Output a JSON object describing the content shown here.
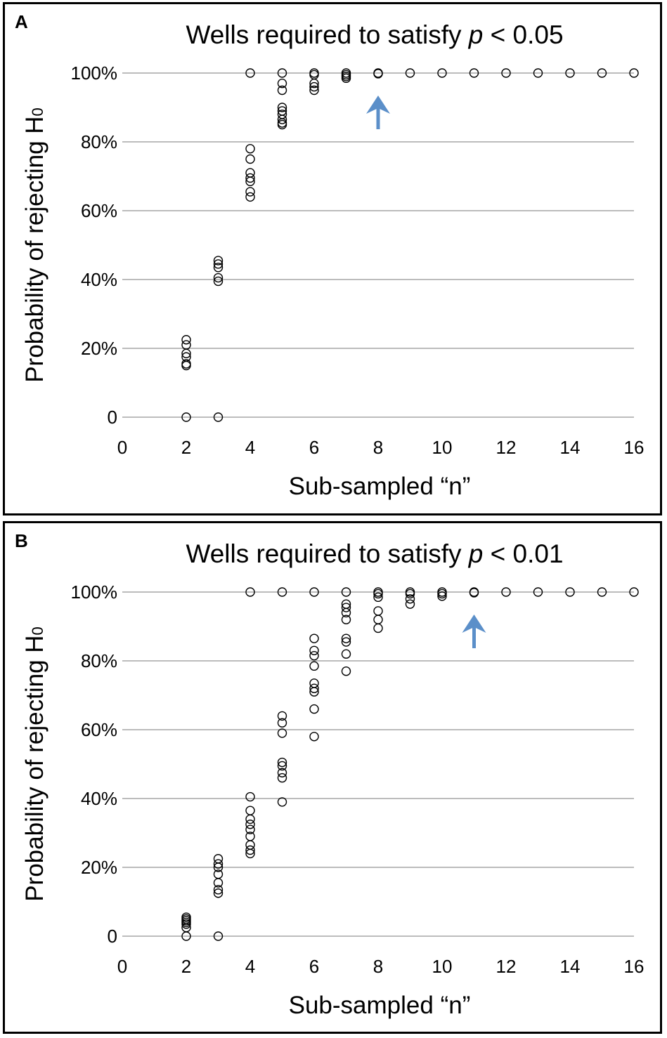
{
  "colors": {
    "grid": "#a6a6a6",
    "marker_stroke": "#000000",
    "arrow": "#5b8fc9",
    "frame": "#000000"
  },
  "chart_data": [
    {
      "type": "scatter",
      "panel_letter": "A",
      "title_prefix": "Wells required to satisfy ",
      "title_p": "p",
      "title_suffix": " < 0.05",
      "xlabel": "Sub-sampled “n”",
      "ylabel": "Probability of rejecting H",
      "ylabel_sub": "0",
      "xlim": [
        0,
        16
      ],
      "ylim": [
        0,
        100
      ],
      "x_ticks": [
        0,
        2,
        4,
        6,
        8,
        10,
        12,
        14,
        16
      ],
      "x_tick_labels": [
        "0",
        "2",
        "4",
        "6",
        "8",
        "10",
        "12",
        "14",
        "16"
      ],
      "y_ticks": [
        0,
        20,
        40,
        60,
        80,
        100
      ],
      "y_tick_labels": [
        "0",
        "20%",
        "40%",
        "60%",
        "80%",
        "100%"
      ],
      "grid": true,
      "arrow_at_n": 8,
      "points": [
        [
          2,
          0
        ],
        [
          2,
          15
        ],
        [
          2,
          15.5
        ],
        [
          2,
          17.5
        ],
        [
          2,
          18.5
        ],
        [
          2,
          21
        ],
        [
          2,
          22.5
        ],
        [
          3,
          0
        ],
        [
          3,
          39.5
        ],
        [
          3,
          40.5
        ],
        [
          3,
          43.5
        ],
        [
          3,
          44.5
        ],
        [
          3,
          45.5
        ],
        [
          4,
          64
        ],
        [
          4,
          65.5
        ],
        [
          4,
          68.5
        ],
        [
          4,
          69.5
        ],
        [
          4,
          71
        ],
        [
          4,
          75
        ],
        [
          4,
          78
        ],
        [
          4,
          100
        ],
        [
          5,
          85
        ],
        [
          5,
          85.5
        ],
        [
          5,
          86.5
        ],
        [
          5,
          88
        ],
        [
          5,
          89
        ],
        [
          5,
          90
        ],
        [
          5,
          95
        ],
        [
          5,
          97
        ],
        [
          5,
          100
        ],
        [
          6,
          95
        ],
        [
          6,
          96
        ],
        [
          6,
          97
        ],
        [
          6,
          99.5
        ],
        [
          6,
          100
        ],
        [
          7,
          98.5
        ],
        [
          7,
          99
        ],
        [
          7,
          99.5
        ],
        [
          7,
          100
        ],
        [
          8,
          99.8
        ],
        [
          8,
          100
        ],
        [
          9,
          100
        ],
        [
          10,
          100
        ],
        [
          11,
          100
        ],
        [
          12,
          100
        ],
        [
          13,
          100
        ],
        [
          14,
          100
        ],
        [
          15,
          100
        ],
        [
          16,
          100
        ]
      ]
    },
    {
      "type": "scatter",
      "panel_letter": "B",
      "title_prefix": "Wells required to satisfy ",
      "title_p": "p",
      "title_suffix": " < 0.01",
      "xlabel": "Sub-sampled “n”",
      "ylabel": "Probability of rejecting H",
      "ylabel_sub": "0",
      "xlim": [
        0,
        16
      ],
      "ylim": [
        0,
        100
      ],
      "x_ticks": [
        0,
        2,
        4,
        6,
        8,
        10,
        12,
        14,
        16
      ],
      "x_tick_labels": [
        "0",
        "2",
        "4",
        "6",
        "8",
        "10",
        "12",
        "14",
        "16"
      ],
      "y_ticks": [
        0,
        20,
        40,
        60,
        80,
        100
      ],
      "y_tick_labels": [
        "0",
        "20%",
        "40%",
        "60%",
        "80%",
        "100%"
      ],
      "grid": true,
      "arrow_at_n": 11,
      "points": [
        [
          2,
          0
        ],
        [
          2,
          2.5
        ],
        [
          2,
          3.5
        ],
        [
          2,
          4
        ],
        [
          2,
          4.5
        ],
        [
          2,
          5
        ],
        [
          2,
          5.5
        ],
        [
          3,
          0
        ],
        [
          3,
          12.5
        ],
        [
          3,
          13.5
        ],
        [
          3,
          15.5
        ],
        [
          3,
          18
        ],
        [
          3,
          20
        ],
        [
          3,
          21
        ],
        [
          3,
          22.5
        ],
        [
          4,
          24
        ],
        [
          4,
          25
        ],
        [
          4,
          26.5
        ],
        [
          4,
          29
        ],
        [
          4,
          31
        ],
        [
          4,
          32.5
        ],
        [
          4,
          34
        ],
        [
          4,
          36.5
        ],
        [
          4,
          40.5
        ],
        [
          4,
          100
        ],
        [
          5,
          39
        ],
        [
          5,
          46
        ],
        [
          5,
          47.5
        ],
        [
          5,
          49.5
        ],
        [
          5,
          50.5
        ],
        [
          5,
          59
        ],
        [
          5,
          62
        ],
        [
          5,
          64
        ],
        [
          5,
          100
        ],
        [
          6,
          58
        ],
        [
          6,
          66
        ],
        [
          6,
          71
        ],
        [
          6,
          72
        ],
        [
          6,
          73.5
        ],
        [
          6,
          78.5
        ],
        [
          6,
          81.5
        ],
        [
          6,
          83
        ],
        [
          6,
          86.5
        ],
        [
          6,
          100
        ],
        [
          7,
          77
        ],
        [
          7,
          82
        ],
        [
          7,
          85.5
        ],
        [
          7,
          86.5
        ],
        [
          7,
          92
        ],
        [
          7,
          94
        ],
        [
          7,
          95.5
        ],
        [
          7,
          96.5
        ],
        [
          7,
          100
        ],
        [
          8,
          89.5
        ],
        [
          8,
          92
        ],
        [
          8,
          94.5
        ],
        [
          8,
          98.5
        ],
        [
          8,
          99.5
        ],
        [
          8,
          100
        ],
        [
          9,
          96.5
        ],
        [
          9,
          98
        ],
        [
          9,
          99.5
        ],
        [
          9,
          100
        ],
        [
          10,
          98.8
        ],
        [
          10,
          99.5
        ],
        [
          10,
          100
        ],
        [
          11,
          99.8
        ],
        [
          11,
          100
        ],
        [
          12,
          100
        ],
        [
          13,
          100
        ],
        [
          14,
          100
        ],
        [
          15,
          100
        ],
        [
          16,
          100
        ]
      ]
    }
  ]
}
